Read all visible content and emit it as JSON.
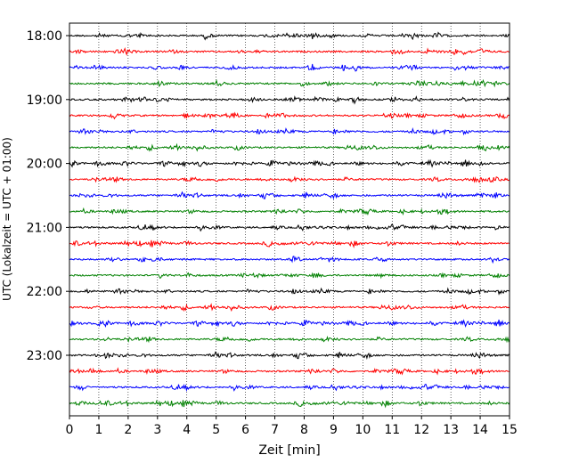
{
  "chart_data": {
    "type": "line",
    "title": "",
    "xlabel": "Zeit  [min]",
    "ylabel": "UTC (Lokalzeit = UTC + 01:00)",
    "xlim": [
      0,
      15
    ],
    "x_ticks": [
      "0",
      "1",
      "2",
      "3",
      "4",
      "5",
      "6",
      "7",
      "8",
      "9",
      "10",
      "11",
      "12",
      "13",
      "14",
      "15"
    ],
    "y_ticks": [
      "18:00",
      "19:00",
      "20:00",
      "21:00",
      "22:00",
      "23:00"
    ],
    "grid": "vertical dotted",
    "trace_colors": [
      "#000000",
      "#ff0000",
      "#0000ff",
      "#008000"
    ],
    "trace_start_times": [
      "18:00",
      "18:15",
      "18:30",
      "18:45",
      "19:00",
      "19:15",
      "19:30",
      "19:45",
      "20:00",
      "20:15",
      "20:30",
      "20:45",
      "21:00",
      "21:15",
      "21:30",
      "21:45",
      "22:00",
      "22:15",
      "22:30",
      "22:45",
      "23:00",
      "23:15",
      "23:30",
      "23:45"
    ],
    "trace_duration_min": 15
  }
}
